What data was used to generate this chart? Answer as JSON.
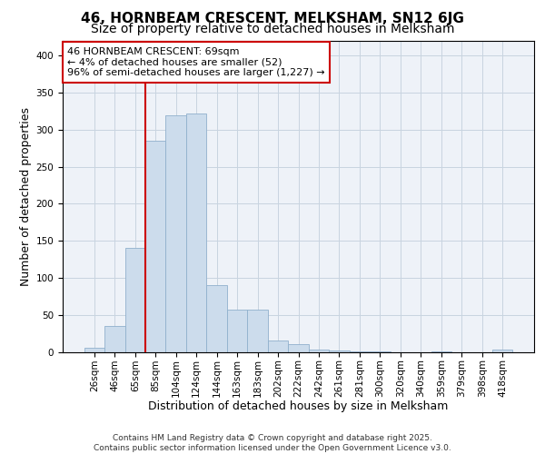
{
  "title_line1": "46, HORNBEAM CRESCENT, MELKSHAM, SN12 6JG",
  "title_line2": "Size of property relative to detached houses in Melksham",
  "xlabel": "Distribution of detached houses by size in Melksham",
  "ylabel": "Number of detached properties",
  "bar_color": "#ccdcec",
  "bar_edge_color": "#90b0cc",
  "vline_color": "#cc0000",
  "vline_index": 2,
  "categories": [
    "26sqm",
    "46sqm",
    "65sqm",
    "85sqm",
    "104sqm",
    "124sqm",
    "144sqm",
    "163sqm",
    "183sqm",
    "202sqm",
    "222sqm",
    "242sqm",
    "261sqm",
    "281sqm",
    "300sqm",
    "320sqm",
    "340sqm",
    "359sqm",
    "379sqm",
    "398sqm",
    "418sqm"
  ],
  "values": [
    5,
    35,
    140,
    285,
    320,
    322,
    90,
    57,
    57,
    15,
    10,
    3,
    2,
    1,
    1,
    0,
    0,
    1,
    0,
    0,
    3
  ],
  "ylim": [
    0,
    420
  ],
  "yticks": [
    0,
    50,
    100,
    150,
    200,
    250,
    300,
    350,
    400
  ],
  "annotation_text": "46 HORNBEAM CRESCENT: 69sqm\n← 4% of detached houses are smaller (52)\n96% of semi-detached houses are larger (1,227) →",
  "annotation_box_facecolor": "#ffffff",
  "annotation_box_edgecolor": "#cc0000",
  "footnote": "Contains HM Land Registry data © Crown copyright and database right 2025.\nContains public sector information licensed under the Open Government Licence v3.0.",
  "grid_color": "#c8d4e0",
  "bg_color": "#eef2f8",
  "title_fontsize": 11,
  "subtitle_fontsize": 10,
  "axis_label_fontsize": 9,
  "tick_fontsize": 7.5,
  "annot_fontsize": 8,
  "footnote_fontsize": 6.5
}
